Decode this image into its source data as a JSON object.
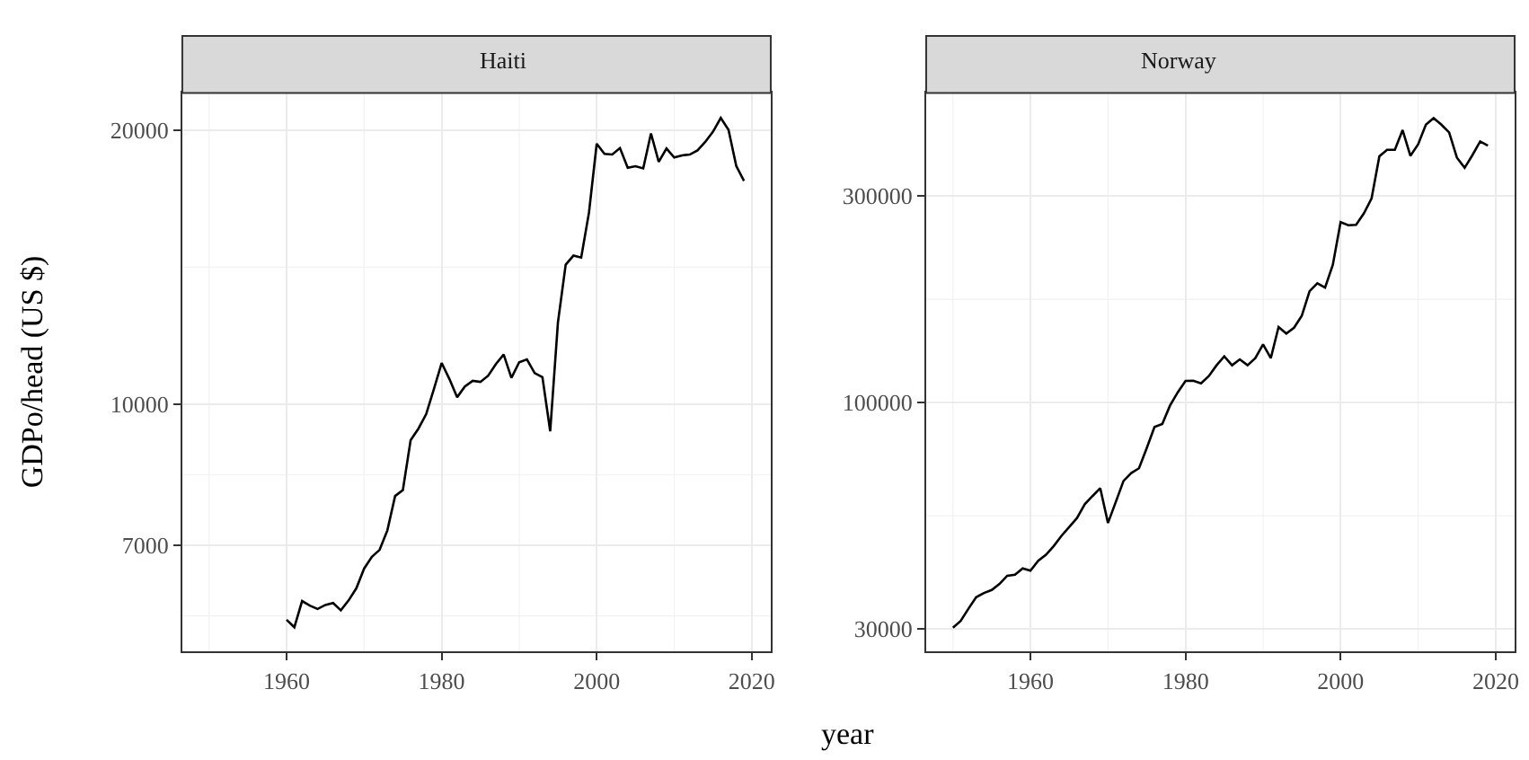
{
  "chart_data": [
    {
      "type": "line",
      "title": "Haiti",
      "xlabel": "year",
      "ylabel": "GDPo/head (US $)",
      "log": "y",
      "grid": true,
      "marker": "none",
      "line_style": "solid",
      "xlim": [
        1946.55,
        2022.45
      ],
      "xticks": [
        1960,
        1980,
        2000,
        2020
      ],
      "ylim": [
        5350,
        21970
      ],
      "yticks": [
        7000,
        10000,
        20000
      ],
      "x": [
        1960,
        1961,
        1962,
        1963,
        1964,
        1965,
        1966,
        1967,
        1968,
        1969,
        1970,
        1971,
        1972,
        1973,
        1974,
        1975,
        1976,
        1977,
        1978,
        1979,
        1980,
        1981,
        1982,
        1983,
        1984,
        1985,
        1986,
        1987,
        1988,
        1989,
        1990,
        1991,
        1992,
        1993,
        1994,
        1995,
        1996,
        1997,
        1998,
        1999,
        2000,
        2001,
        2002,
        2003,
        2004,
        2005,
        2006,
        2007,
        2008,
        2009,
        2010,
        2011,
        2012,
        2013,
        2014,
        2015,
        2016,
        2017,
        2018,
        2019
      ],
      "series": [
        {
          "color": "#000000",
          "values": [
            5800,
            5690,
            6080,
            6010,
            5960,
            6020,
            6050,
            5940,
            6090,
            6280,
            6600,
            6800,
            6920,
            7270,
            7930,
            8050,
            9130,
            9400,
            9750,
            10390,
            11100,
            10660,
            10180,
            10460,
            10610,
            10580,
            10750,
            11070,
            11340,
            10690,
            11120,
            11200,
            10820,
            10710,
            9340,
            12300,
            14230,
            14560,
            14490,
            16230,
            19320,
            18830,
            18800,
            19110,
            18180,
            18250,
            18150,
            19830,
            18460,
            19090,
            18660,
            18760,
            18800,
            19000,
            19410,
            19920,
            20620,
            20010,
            18260,
            17590
          ]
        }
      ]
    },
    {
      "type": "line",
      "title": "Norway",
      "log": "y",
      "grid": true,
      "marker": "none",
      "line_style": "solid",
      "xlim": [
        1946.55,
        2022.45
      ],
      "xticks": [
        1960,
        1980,
        2000,
        2020
      ],
      "ylim": [
        26580,
        519000
      ],
      "yticks": [
        30000,
        100000,
        300000
      ],
      "x": [
        1950,
        1951,
        1952,
        1953,
        1954,
        1955,
        1956,
        1957,
        1958,
        1959,
        1960,
        1961,
        1962,
        1963,
        1964,
        1965,
        1966,
        1967,
        1968,
        1969,
        1970,
        1971,
        1972,
        1973,
        1974,
        1975,
        1976,
        1977,
        1978,
        1979,
        1980,
        1981,
        1982,
        1983,
        1984,
        1985,
        1986,
        1987,
        1988,
        1989,
        1990,
        1991,
        1992,
        1993,
        1994,
        1995,
        1996,
        1997,
        1998,
        1999,
        2000,
        2001,
        2002,
        2003,
        2004,
        2005,
        2006,
        2007,
        2008,
        2009,
        2010,
        2011,
        2012,
        2013,
        2014,
        2015,
        2016,
        2017,
        2018,
        2019
      ],
      "series": [
        {
          "color": "#000000",
          "values": [
            30200,
            31300,
            33400,
            35500,
            36300,
            36900,
            38100,
            39800,
            40000,
            41400,
            40900,
            43100,
            44500,
            46600,
            49200,
            51600,
            54100,
            58200,
            60800,
            63400,
            52700,
            58900,
            65900,
            68700,
            70500,
            78500,
            87800,
            89200,
            98400,
            105600,
            112200,
            112300,
            110700,
            115100,
            121900,
            127800,
            121900,
            125800,
            121900,
            126600,
            136200,
            126600,
            149400,
            144300,
            148900,
            158700,
            180800,
            188500,
            184300,
            208000,
            260900,
            256700,
            257300,
            273500,
            296200,
            370300,
            383500,
            383500,
            425900,
            371400,
            394600,
            438300,
            453900,
            438300,
            420600,
            367900,
            348400,
            372600,
            400900,
            392000
          ]
        }
      ]
    }
  ]
}
